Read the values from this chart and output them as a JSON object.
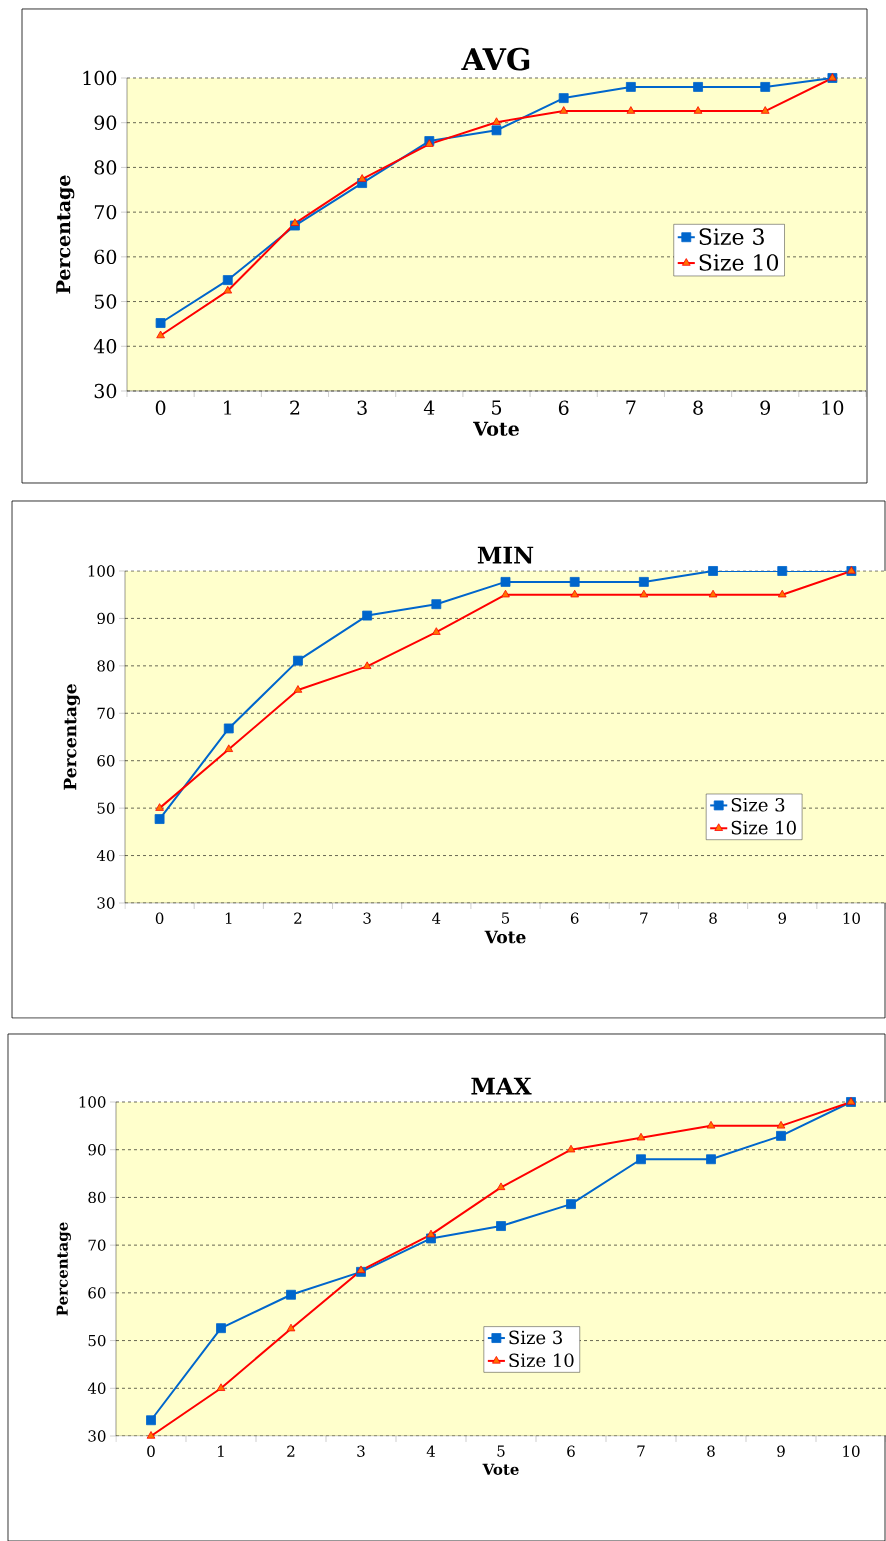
{
  "chart_data": [
    {
      "type": "line",
      "title": "AVG",
      "xlabel": "Vote",
      "ylabel": "Percentage",
      "categories": [
        "0",
        "1",
        "2",
        "3",
        "4",
        "5",
        "6",
        "7",
        "8",
        "9",
        "10"
      ],
      "ylim": [
        30,
        100
      ],
      "yticks": [
        30,
        40,
        50,
        60,
        70,
        80,
        90,
        100
      ],
      "grid": "y",
      "legend": "right",
      "series": [
        {
          "name": "Size 3",
          "color": "#0066cc",
          "marker": "square",
          "values": [
            45.2,
            54.8,
            67.0,
            76.5,
            85.9,
            88.3,
            95.5,
            98,
            98,
            98,
            100
          ]
        },
        {
          "name": "Size 10",
          "color": "#ff0000",
          "marker": "triangle",
          "values": [
            42.4,
            52.4,
            67.5,
            77.4,
            85.2,
            90.1,
            92.6,
            92.6,
            92.6,
            92.6,
            100
          ]
        }
      ]
    },
    {
      "type": "line",
      "title": "MIN",
      "xlabel": "Vote",
      "ylabel": "Percentage",
      "categories": [
        "0",
        "1",
        "2",
        "3",
        "4",
        "5",
        "6",
        "7",
        "8",
        "9",
        "10"
      ],
      "ylim": [
        30,
        100
      ],
      "yticks": [
        30,
        40,
        50,
        60,
        70,
        80,
        90,
        100
      ],
      "grid": "y",
      "legend": "bottom right",
      "series": [
        {
          "name": "Size 3",
          "color": "#0066cc",
          "marker": "square",
          "values": [
            47.7,
            66.8,
            81.1,
            90.6,
            93.0,
            97.7,
            97.7,
            97.7,
            100,
            100,
            100
          ]
        },
        {
          "name": "Size 10",
          "color": "#ff0000",
          "marker": "triangle",
          "values": [
            50,
            62.4,
            74.9,
            79.9,
            87.1,
            95,
            95,
            95,
            95,
            95,
            100
          ]
        }
      ]
    },
    {
      "type": "line",
      "title": "MAX",
      "xlabel": "Vote",
      "ylabel": "Percentage",
      "categories": [
        "0",
        "1",
        "2",
        "3",
        "4",
        "5",
        "6",
        "7",
        "8",
        "9",
        "10"
      ],
      "ylim": [
        30,
        100
      ],
      "yticks": [
        30,
        40,
        50,
        60,
        70,
        80,
        90,
        100
      ],
      "grid": "y",
      "legend": "bottom",
      "series": [
        {
          "name": "Size 3",
          "color": "#0066cc",
          "marker": "square",
          "values": [
            33.3,
            52.6,
            59.6,
            64.4,
            71.4,
            74.0,
            78.6,
            88,
            88,
            92.9,
            100
          ]
        },
        {
          "name": "Size 10",
          "color": "#ff0000",
          "marker": "triangle",
          "values": [
            30,
            40,
            52.5,
            64.7,
            72.2,
            82.1,
            90,
            92.5,
            95,
            95,
            100
          ]
        }
      ]
    }
  ]
}
